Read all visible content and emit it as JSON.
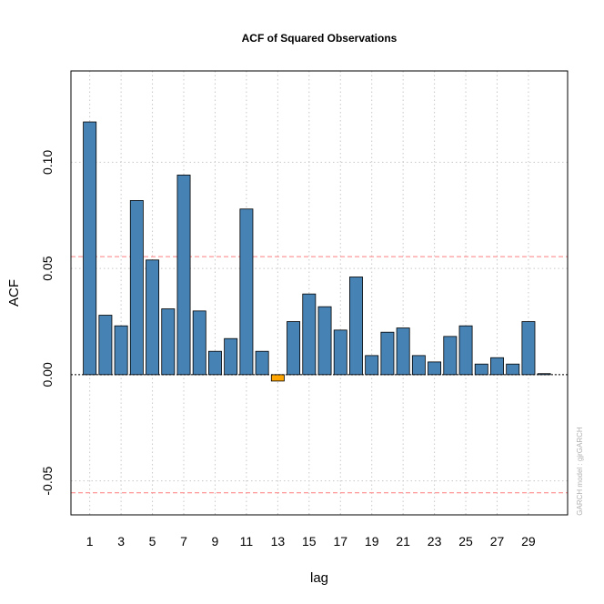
{
  "chart_data": {
    "type": "bar",
    "title": "ACF of Squared Observations",
    "xlabel": "lag",
    "ylabel": "ACF",
    "x": [
      1,
      2,
      3,
      4,
      5,
      6,
      7,
      8,
      9,
      10,
      11,
      12,
      13,
      14,
      15,
      16,
      17,
      18,
      19,
      20,
      21,
      22,
      23,
      24,
      25,
      26,
      27,
      28,
      29,
      30
    ],
    "values": [
      0.119,
      0.028,
      0.023,
      0.082,
      0.054,
      0.031,
      0.094,
      0.03,
      0.011,
      0.017,
      0.078,
      0.011,
      -0.003,
      0.025,
      0.038,
      0.032,
      0.021,
      0.046,
      0.009,
      0.02,
      0.022,
      0.009,
      0.006,
      0.018,
      0.023,
      0.005,
      0.008,
      0.005,
      0.025,
      0.0005
    ],
    "xticks": [
      1,
      3,
      5,
      7,
      9,
      11,
      13,
      15,
      17,
      19,
      21,
      23,
      25,
      27,
      29
    ],
    "yticks": [
      -0.05,
      0.0,
      0.05,
      0.1
    ],
    "ytick_labels": [
      "-0.05",
      "0.00",
      "0.05",
      "0.10"
    ],
    "ylim": [
      -0.066,
      0.143
    ],
    "xlim": [
      -0.2,
      31.5
    ],
    "confidence_band": 0.0556,
    "grid": true,
    "watermark": "GARCH model : gjrGARCH",
    "colors": {
      "positive_bar": "#4682b4",
      "negative_bar": "#ffa500",
      "confidence_line": "#ff7f7f",
      "grid": "#c8c8c8",
      "zero_line": "#000000"
    }
  }
}
